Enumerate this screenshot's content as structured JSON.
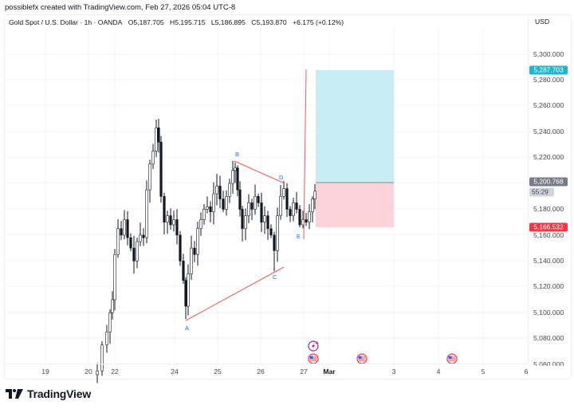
{
  "header": {
    "credit": "possiblefx created with TradingView.com, Feb 27, 2026 05:04 UTC-8",
    "symbol": "Gold Spot / U.S. Dollar · 1h · OANDA",
    "open": "O5,187.705",
    "high": "H5,195.715",
    "low": "L5,186.895",
    "close": "C5,193.870",
    "change": "+6.175 (+0.12%)"
  },
  "axis": {
    "currency": "USD",
    "price_labels": [
      "5,300.000",
      "5,280.000",
      "5,260.000",
      "5,240.000",
      "5,220.000",
      "5,180.000",
      "5,160.000",
      "5,140.000",
      "5,120.000",
      "5,100.000",
      "5,080.000",
      "5,060.000"
    ],
    "time_labels": [
      "19",
      "20",
      "22",
      "24",
      "25",
      "26",
      "27",
      "Mar",
      "3",
      "4",
      "5",
      "6"
    ]
  },
  "tags": {
    "target": {
      "value": "5,287.703",
      "color": "#22b5c9"
    },
    "entry": {
      "value": "5,200.768",
      "color": "#787b86"
    },
    "countdown": {
      "value": "55:29",
      "color": "#d1d4dc"
    },
    "stop": {
      "value": "5,166.532",
      "color": "#f23645"
    }
  },
  "pattern_labels": [
    "A",
    "B",
    "C",
    "D",
    "E"
  ],
  "events": [
    {
      "type": "lightning-event",
      "date": "27"
    },
    {
      "type": "us-flag-event",
      "date": "27"
    },
    {
      "type": "us-flag-event",
      "date": "Mar 2"
    },
    {
      "type": "us-flag-event",
      "date": "Mar 4"
    }
  ],
  "branding": {
    "logo_text": "TradingView"
  },
  "colors": {
    "candle": "#131722",
    "pattern_line": "#f05a5a",
    "profit_zone": "#c8eef3",
    "loss_zone": "#fbd3d8",
    "label_blue": "#2962ff"
  },
  "chart_data": {
    "type": "candlestick",
    "title": "Gold Spot / U.S. Dollar · 1h · OANDA",
    "xlabel": "",
    "ylabel": "USD",
    "ylim": [
      5060,
      5300
    ],
    "x_ticks": [
      "19",
      "20",
      "22",
      "24",
      "25",
      "26",
      "27",
      "Mar",
      "3",
      "4",
      "5",
      "6"
    ],
    "grid": true,
    "last_ohlc": {
      "open": 5187.705,
      "high": 5195.715,
      "low": 5186.895,
      "close": 5193.87,
      "change": 6.175,
      "change_pct": 0.12
    },
    "price_path_approx": [
      {
        "date": "20",
        "price": 5060
      },
      {
        "date": "21",
        "price": 5110
      },
      {
        "date": "22",
        "price": 5170
      },
      {
        "date": "22.5",
        "price": 5150
      },
      {
        "date": "23",
        "price": 5248
      },
      {
        "date": "23.5",
        "price": 5170
      },
      {
        "date": "24",
        "price": 5095
      },
      {
        "date": "24.5",
        "price": 5180
      },
      {
        "date": "25",
        "price": 5200
      },
      {
        "date": "25.4",
        "price": 5217
      },
      {
        "date": "26",
        "price": 5170
      },
      {
        "date": "26.3",
        "price": 5130
      },
      {
        "date": "26.6",
        "price": 5200
      },
      {
        "date": "27",
        "price": 5165
      },
      {
        "date": "27.3",
        "price": 5194
      }
    ],
    "pattern_points": [
      {
        "label": "A",
        "date": "24.3",
        "price": 5095
      },
      {
        "label": "B",
        "date": "25.4",
        "price": 5217
      },
      {
        "label": "C",
        "date": "26.3",
        "price": 5132
      },
      {
        "label": "D",
        "date": "26.6",
        "price": 5200
      },
      {
        "label": "E",
        "date": "27",
        "price": 5166
      }
    ],
    "position": {
      "type": "long",
      "entry": 5200.768,
      "target": 5287.703,
      "stop": 5166.532
    },
    "annotations": [
      "Triangle A-B-C-D-E",
      "Long position tool",
      "Vertical breakout line from E"
    ]
  }
}
